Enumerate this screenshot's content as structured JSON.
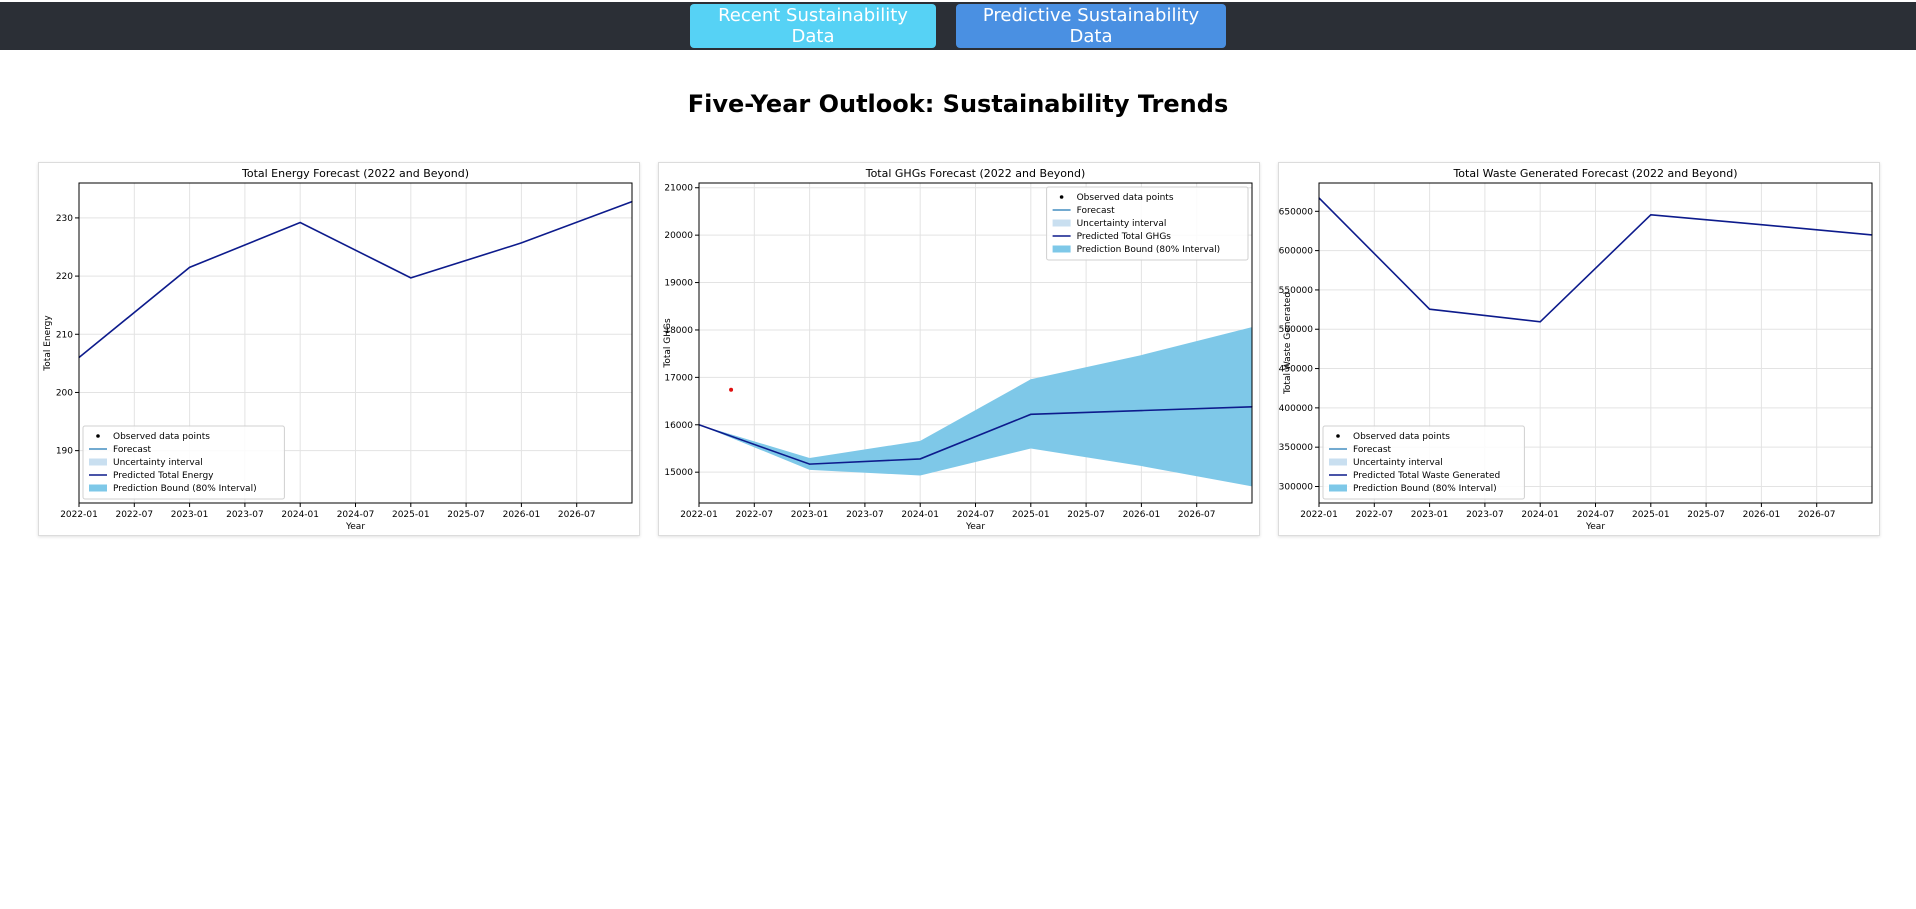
{
  "nav": {
    "recent_label": "Recent Sustainability Data",
    "predictive_label": "Predictive Sustainability Data"
  },
  "page": {
    "title": "Five-Year Outlook: Sustainability Trends"
  },
  "colors": {
    "forecast_line": "#0d1b8c",
    "bound_fill": "#7ec8e8",
    "uncertainty_fill": "#c9dff0",
    "observed_point": "#e01010",
    "nav_bg": "#2b2f36",
    "recent_btn": "#56d2f5",
    "predictive_btn": "#4a90e2"
  },
  "chart_data": [
    {
      "type": "line",
      "title": "Total Energy Forecast (2022 and Beyond)",
      "xlabel": "Year",
      "ylabel": "Total Energy",
      "x_ticks": [
        "2022-01",
        "2022-07",
        "2023-01",
        "2023-07",
        "2024-01",
        "2024-07",
        "2025-01",
        "2025-07",
        "2026-01",
        "2026-07"
      ],
      "y_ticks": [
        "190",
        "200",
        "210",
        "220",
        "230"
      ],
      "xlim": [
        2022.0,
        2027.0
      ],
      "ylim": [
        181,
        236
      ],
      "grid": true,
      "legend_position": "lower-left",
      "legend": [
        "Observed data points",
        "Forecast",
        "Uncertainty interval",
        "Predicted Total Energy",
        "Prediction Bound (80% Interval)"
      ],
      "series": [
        {
          "name": "Predicted Total Energy",
          "x": [
            2022.0,
            2023.0,
            2024.0,
            2025.0,
            2026.0,
            2027.0
          ],
          "y": [
            206.0,
            221.5,
            229.2,
            219.7,
            225.7,
            232.8
          ]
        }
      ],
      "bound": null,
      "observed": []
    },
    {
      "type": "line",
      "title": "Total GHGs Forecast (2022 and Beyond)",
      "xlabel": "Year",
      "ylabel": "Total GHGs",
      "x_ticks": [
        "2022-01",
        "2022-07",
        "2023-01",
        "2023-07",
        "2024-01",
        "2024-07",
        "2025-01",
        "2025-07",
        "2026-01",
        "2026-07"
      ],
      "y_ticks": [
        "15000",
        "16000",
        "17000",
        "18000",
        "19000",
        "20000",
        "21000"
      ],
      "xlim": [
        2022.0,
        2027.0
      ],
      "ylim": [
        14350,
        21100
      ],
      "grid": true,
      "legend_position": "upper-right",
      "legend": [
        "Observed data points",
        "Forecast",
        "Uncertainty interval",
        "Predicted Total GHGs",
        "Prediction Bound (80% Interval)"
      ],
      "series": [
        {
          "name": "Predicted Total GHGs",
          "x": [
            2022.0,
            2023.0,
            2024.0,
            2025.0,
            2026.0,
            2027.0
          ],
          "y": [
            16000,
            15170,
            15280,
            16220,
            16300,
            16380
          ]
        }
      ],
      "bound": {
        "x": [
          2022.0,
          2023.0,
          2024.0,
          2025.0,
          2026.0,
          2027.0
        ],
        "lower": [
          16000,
          15050,
          14930,
          15500,
          15130,
          14700
        ],
        "upper": [
          16000,
          15300,
          15660,
          16960,
          17470,
          18060
        ]
      },
      "observed": [
        {
          "x": 2022.29,
          "y": 16740
        }
      ]
    },
    {
      "type": "line",
      "title": "Total Waste Generated Forecast (2022 and Beyond)",
      "xlabel": "Year",
      "ylabel": "Total Waste Generated",
      "x_ticks": [
        "2022-01",
        "2022-07",
        "2023-01",
        "2023-07",
        "2024-01",
        "2024-07",
        "2025-01",
        "2025-07",
        "2026-01",
        "2026-07"
      ],
      "y_ticks": [
        "300000",
        "350000",
        "400000",
        "450000",
        "500000",
        "550000",
        "600000",
        "650000"
      ],
      "xlim": [
        2022.0,
        2027.0
      ],
      "ylim": [
        279000,
        686000
      ],
      "grid": true,
      "legend_position": "lower-left",
      "legend": [
        "Observed data points",
        "Forecast",
        "Uncertainty interval",
        "Predicted Total Waste Generated",
        "Prediction Bound (80% Interval)"
      ],
      "series": [
        {
          "name": "Predicted Total Waste Generated",
          "x": [
            2022.0,
            2023.0,
            2024.0,
            2025.0,
            2026.0,
            2027.0
          ],
          "y": [
            667000,
            525500,
            509500,
            645500,
            633000,
            620000
          ]
        }
      ],
      "bound": null,
      "observed": []
    }
  ]
}
